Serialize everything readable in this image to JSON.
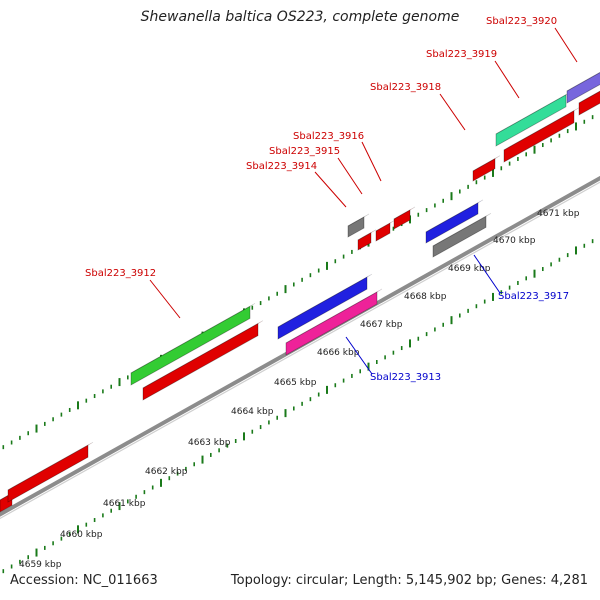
{
  "title": "Shewanella baltica OS223, complete genome",
  "footer": {
    "accession": "Accession: NC_011663",
    "summary": "Topology: circular; Length: 5,145,902 bp; Genes: 4,281"
  },
  "colors": {
    "forward_label": "#cc0000",
    "reverse_label": "#0000cc",
    "backbone": "#8c8c8c",
    "tick": "#1a7a1a"
  },
  "kbp_labels": [
    "4659 kbp",
    "4660 kbp",
    "4661 kbp",
    "4662 kbp",
    "4663 kbp",
    "4664 kbp",
    "4665 kbp",
    "4666 kbp",
    "4667 kbp",
    "4668 kbp",
    "4669 kbp",
    "4670 kbp",
    "4671 kbp"
  ],
  "gene_labels": [
    {
      "text": "Sbal223_3920",
      "strand": "forward"
    },
    {
      "text": "Sbal223_3919",
      "strand": "forward"
    },
    {
      "text": "Sbal223_3918",
      "strand": "forward"
    },
    {
      "text": "Sbal223_3916",
      "strand": "forward"
    },
    {
      "text": "Sbal223_3915",
      "strand": "forward"
    },
    {
      "text": "Sbal223_3914",
      "strand": "forward"
    },
    {
      "text": "Sbal223_3912",
      "strand": "forward"
    },
    {
      "text": "Sbal223_3917",
      "strand": "reverse"
    },
    {
      "text": "Sbal223_3913",
      "strand": "reverse"
    }
  ],
  "features": [
    {
      "color": "#e00000"
    },
    {
      "color": "#e00000"
    },
    {
      "color": "#33cc33"
    },
    {
      "color": "#e00000"
    },
    {
      "color": "#2020e0"
    },
    {
      "color": "#ee2299"
    },
    {
      "color": "#777777"
    },
    {
      "color": "#e00000"
    },
    {
      "color": "#e00000"
    },
    {
      "color": "#e00000"
    },
    {
      "color": "#2020e0"
    },
    {
      "color": "#777777"
    },
    {
      "color": "#e00000"
    },
    {
      "color": "#33dd99"
    },
    {
      "color": "#e00000"
    },
    {
      "color": "#7766dd"
    },
    {
      "color": "#e00000"
    }
  ]
}
